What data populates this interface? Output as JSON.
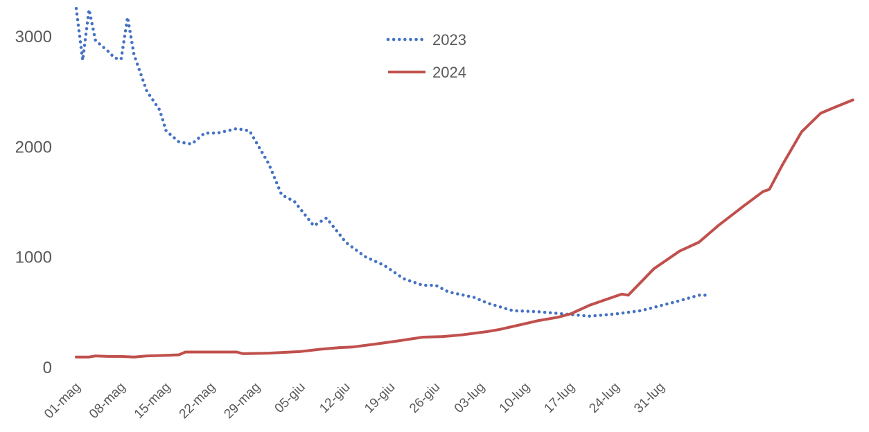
{
  "chart_data": {
    "type": "line",
    "title": "",
    "xlabel": "",
    "ylabel": "",
    "ylim": [
      0,
      3250
    ],
    "yticks": [
      0,
      1000,
      2000,
      3000
    ],
    "grid": false,
    "legend_position": "top-center",
    "x_tick_labels": [
      "01-mag",
      "08-mag",
      "15-mag",
      "22-mag",
      "29-mag",
      "05-giu",
      "12-giu",
      "19-giu",
      "26-giu",
      "03-lug",
      "10-lug",
      "17-lug",
      "24-lug",
      "31-lug"
    ],
    "x_day_range": [
      0,
      91
    ],
    "series": [
      {
        "name": "2023",
        "color": "#4472C4",
        "style": "dotted",
        "points": [
          [
            0,
            3250
          ],
          [
            1,
            2780
          ],
          [
            2,
            3240
          ],
          [
            3,
            2960
          ],
          [
            5,
            2860
          ],
          [
            6,
            2800
          ],
          [
            7,
            2790
          ],
          [
            8,
            3170
          ],
          [
            9,
            2830
          ],
          [
            11,
            2500
          ],
          [
            13,
            2330
          ],
          [
            14,
            2140
          ],
          [
            16,
            2040
          ],
          [
            18,
            2020
          ],
          [
            20,
            2120
          ],
          [
            22,
            2120
          ],
          [
            25,
            2160
          ],
          [
            27,
            2140
          ],
          [
            30,
            1840
          ],
          [
            32,
            1560
          ],
          [
            34,
            1500
          ],
          [
            37,
            1280
          ],
          [
            39,
            1350
          ],
          [
            42,
            1130
          ],
          [
            45,
            1000
          ],
          [
            48,
            920
          ],
          [
            51,
            800
          ],
          [
            54,
            740
          ],
          [
            56,
            740
          ],
          [
            58,
            680
          ],
          [
            62,
            630
          ],
          [
            64,
            580
          ],
          [
            68,
            510
          ],
          [
            72,
            500
          ],
          [
            76,
            480
          ],
          [
            80,
            460
          ],
          [
            84,
            480
          ],
          [
            88,
            510
          ],
          [
            90,
            540
          ],
          [
            94,
            600
          ],
          [
            97,
            650
          ],
          [
            98,
            650
          ]
        ]
      },
      {
        "name": "2024",
        "color": "#C0504D",
        "style": "solid",
        "points": [
          [
            0,
            90
          ],
          [
            2,
            90
          ],
          [
            3,
            100
          ],
          [
            5,
            95
          ],
          [
            7,
            95
          ],
          [
            9,
            90
          ],
          [
            11,
            100
          ],
          [
            14,
            105
          ],
          [
            16,
            110
          ],
          [
            17,
            135
          ],
          [
            20,
            135
          ],
          [
            25,
            135
          ],
          [
            26,
            120
          ],
          [
            30,
            125
          ],
          [
            35,
            140
          ],
          [
            38,
            160
          ],
          [
            41,
            175
          ],
          [
            43,
            180
          ],
          [
            47,
            210
          ],
          [
            50,
            235
          ],
          [
            54,
            270
          ],
          [
            57,
            275
          ],
          [
            60,
            290
          ],
          [
            64,
            320
          ],
          [
            66,
            340
          ],
          [
            69,
            380
          ],
          [
            72,
            420
          ],
          [
            75,
            450
          ],
          [
            77,
            480
          ],
          [
            80,
            560
          ],
          [
            82,
            600
          ],
          [
            84,
            640
          ],
          [
            85,
            660
          ],
          [
            86,
            650
          ],
          [
            90,
            890
          ],
          [
            94,
            1050
          ],
          [
            97,
            1130
          ],
          [
            100,
            1280
          ],
          [
            104,
            1460
          ],
          [
            107,
            1590
          ],
          [
            108,
            1610
          ],
          [
            110,
            1830
          ],
          [
            113,
            2130
          ],
          [
            116,
            2300
          ],
          [
            118,
            2350
          ],
          [
            121,
            2420
          ]
        ]
      }
    ]
  }
}
